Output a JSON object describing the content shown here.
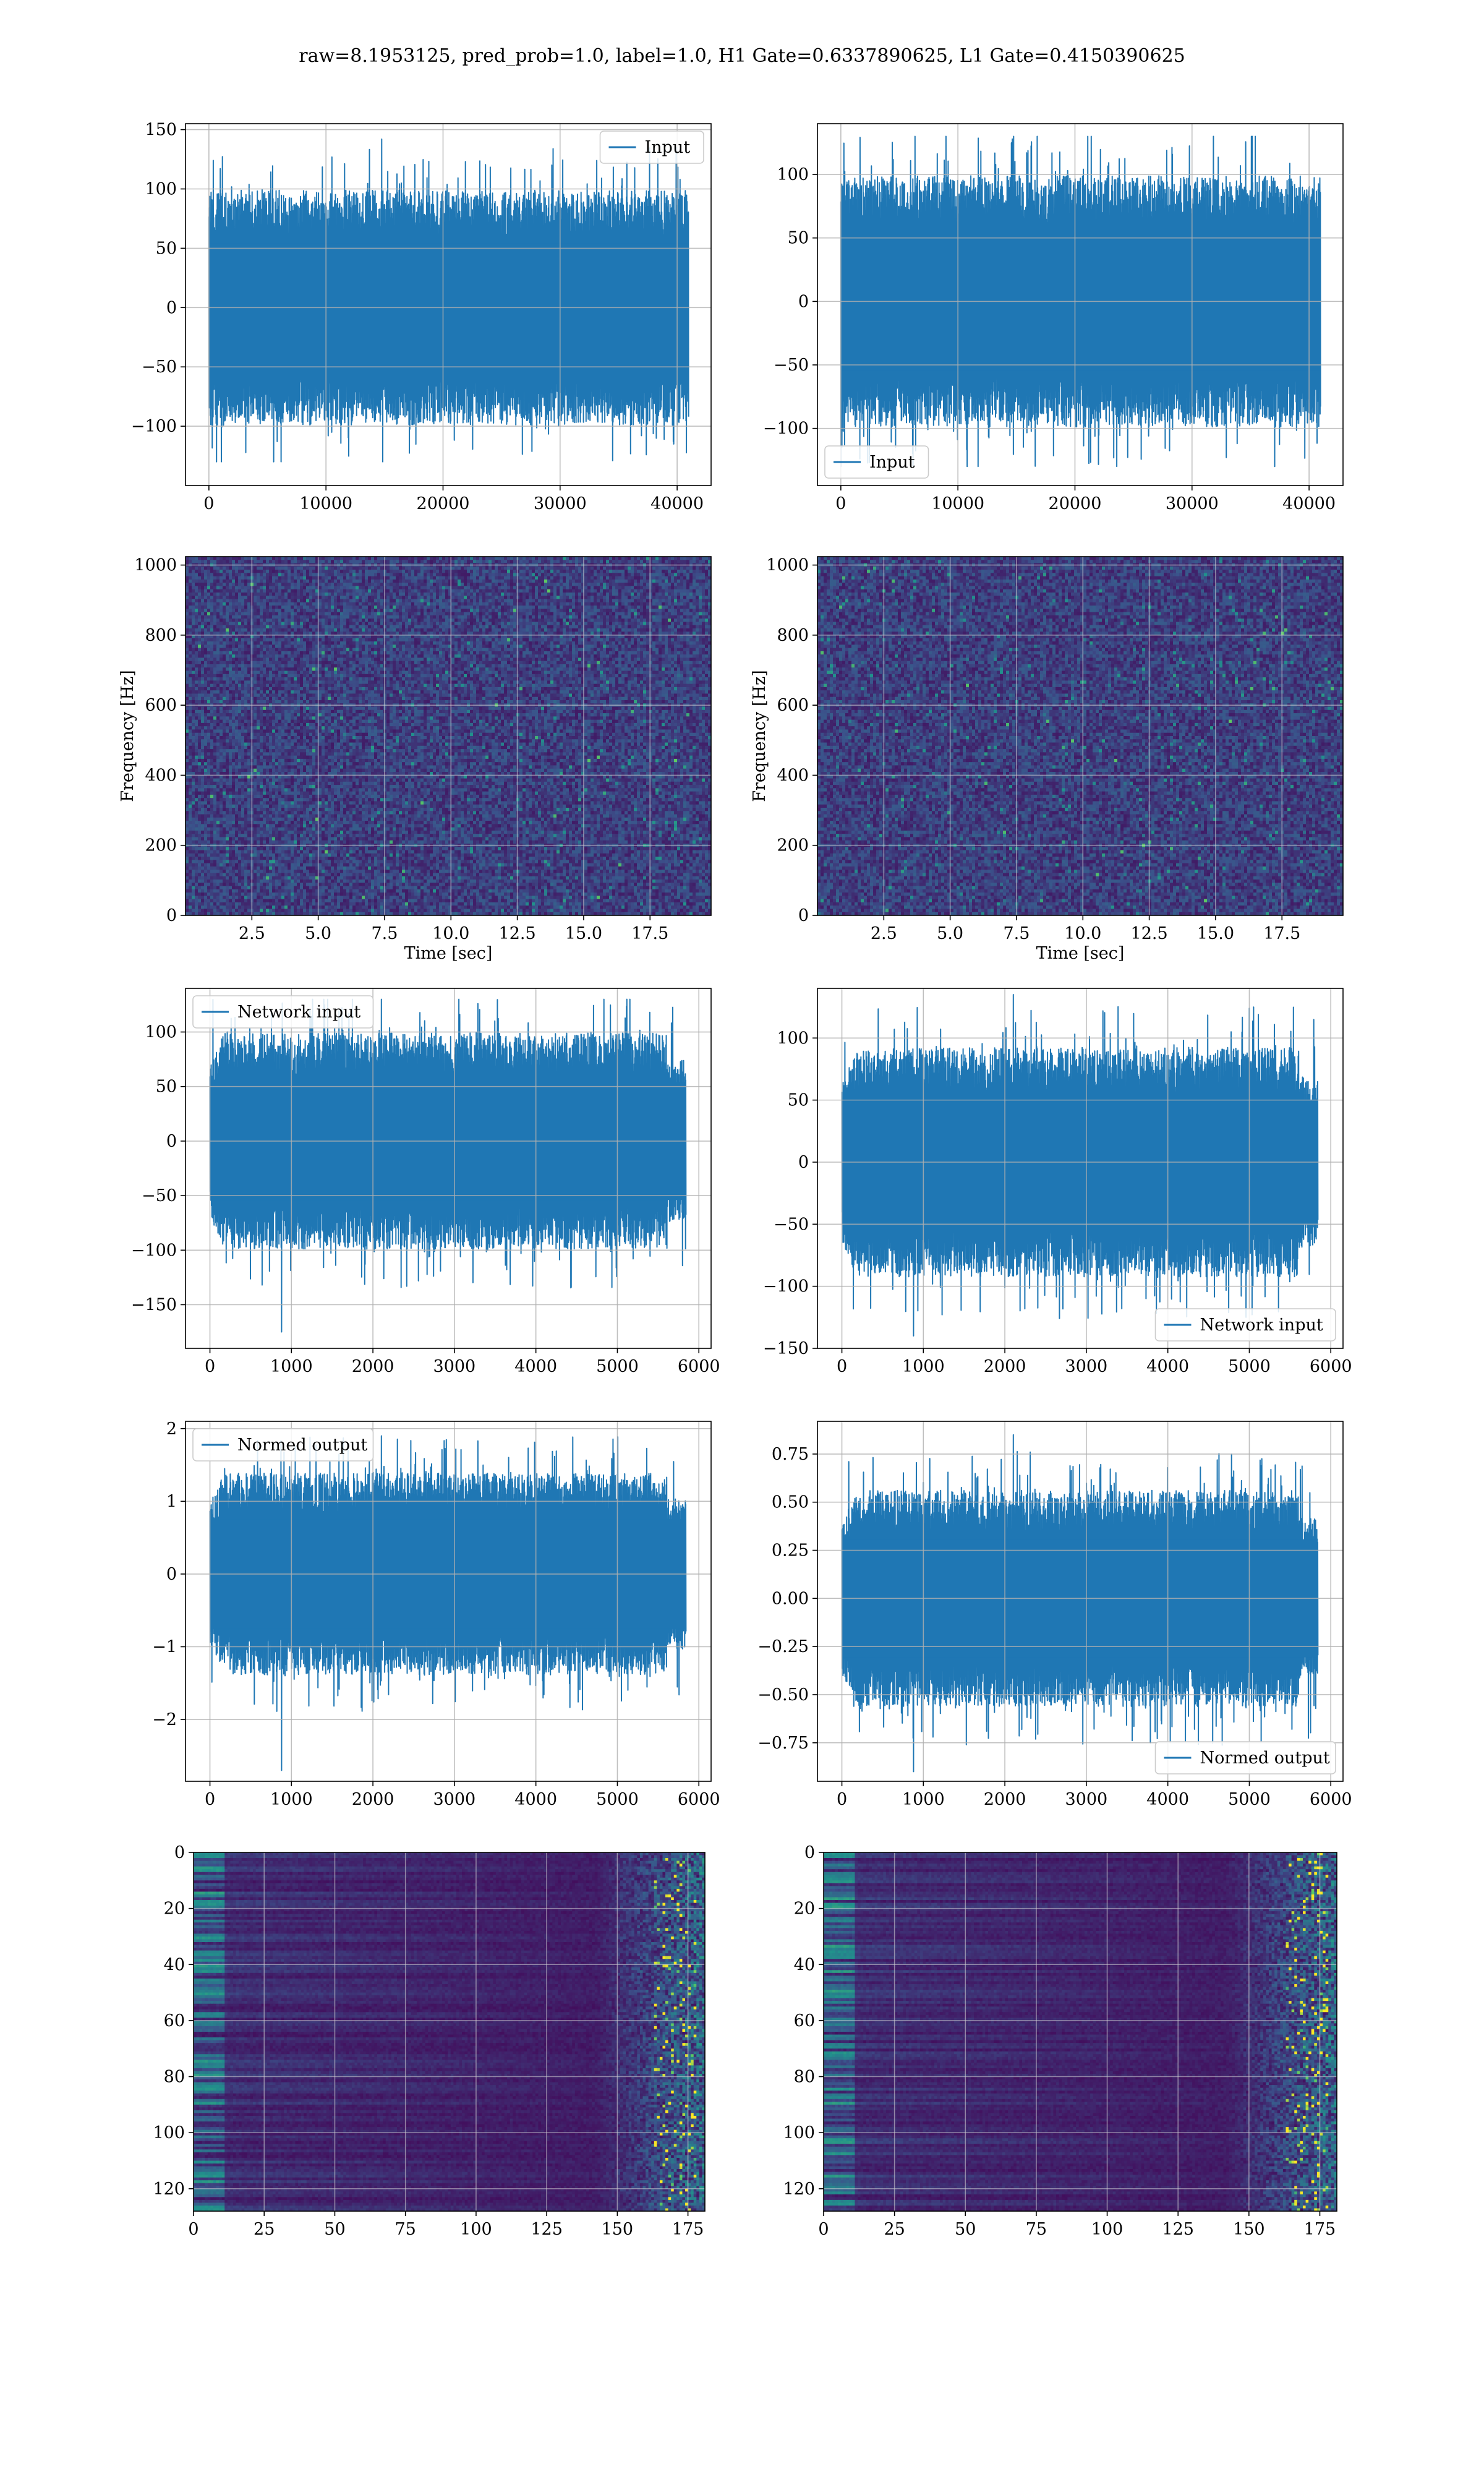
{
  "figure": {
    "suptitle": "raw=8.1953125, pred_prob=1.0, label=1.0, H1 Gate=0.6337890625, L1 Gate=0.4150390625"
  },
  "colors": {
    "line": "#1f77b4",
    "grid": "#b0b0b0",
    "viridis_low": "#440154",
    "viridis_mid": "#21918c",
    "viridis_high": "#fde725"
  },
  "chart_data": [
    {
      "id": "h1-input",
      "type": "line",
      "series": [
        {
          "name": "Input",
          "n": 40960,
          "amplitude_std": 30,
          "min": -130,
          "max": 142
        }
      ],
      "xlim": [
        -2000,
        42900
      ],
      "ylim": [
        -150,
        155
      ],
      "xticks": [
        0,
        10000,
        20000,
        30000,
        40000
      ],
      "yticks": [
        -100,
        -50,
        0,
        50,
        100,
        150
      ],
      "legend": "top-right",
      "grid": true,
      "xlabel": "",
      "ylabel": ""
    },
    {
      "id": "l1-input",
      "type": "line",
      "series": [
        {
          "name": "Input",
          "n": 40960,
          "amplitude_std": 30,
          "min": -130,
          "max": 130
        }
      ],
      "xlim": [
        -2000,
        42900
      ],
      "ylim": [
        -145,
        140
      ],
      "xticks": [
        0,
        10000,
        20000,
        30000,
        40000
      ],
      "yticks": [
        -100,
        -50,
        0,
        50,
        100
      ],
      "legend": "bottom-left",
      "grid": true,
      "xlabel": "",
      "ylabel": ""
    },
    {
      "id": "h1-spectrogram",
      "type": "heatmap",
      "xlim": [
        0,
        19.8
      ],
      "ylim": [
        0,
        1024
      ],
      "xticks": [
        2.5,
        5.0,
        7.5,
        10.0,
        12.5,
        15.0,
        17.5
      ],
      "yticks": [
        0,
        200,
        400,
        600,
        800,
        1000
      ],
      "xlabel": "Time [sec]",
      "ylabel": "Frequency [Hz]",
      "grid": true
    },
    {
      "id": "l1-spectrogram",
      "type": "heatmap",
      "xlim": [
        0,
        19.8
      ],
      "ylim": [
        0,
        1024
      ],
      "xticks": [
        2.5,
        5.0,
        7.5,
        10.0,
        12.5,
        15.0,
        17.5
      ],
      "yticks": [
        0,
        200,
        400,
        600,
        800,
        1000
      ],
      "xlabel": "Time [sec]",
      "ylabel": "Frequency [Hz]",
      "grid": true
    },
    {
      "id": "h1-network-input",
      "type": "line",
      "series": [
        {
          "name": "Network input",
          "n": 5840,
          "amplitude_std": 30,
          "min": -175,
          "max": 130
        }
      ],
      "xlim": [
        -300,
        6150
      ],
      "ylim": [
        -190,
        140
      ],
      "xticks": [
        0,
        1000,
        2000,
        3000,
        4000,
        5000,
        6000
      ],
      "yticks": [
        -150,
        -100,
        -50,
        0,
        50,
        100
      ],
      "legend": "top-left",
      "grid": true,
      "xlabel": "",
      "ylabel": ""
    },
    {
      "id": "l1-network-input",
      "type": "line",
      "series": [
        {
          "name": "Network input",
          "n": 5840,
          "amplitude_std": 28,
          "min": -140,
          "max": 135
        }
      ],
      "xlim": [
        -300,
        6150
      ],
      "ylim": [
        -150,
        140
      ],
      "xticks": [
        0,
        1000,
        2000,
        3000,
        4000,
        5000,
        6000
      ],
      "yticks": [
        -150,
        -100,
        -50,
        0,
        50,
        100
      ],
      "legend": "bottom-right",
      "grid": true,
      "xlabel": "",
      "ylabel": ""
    },
    {
      "id": "h1-normed-output",
      "type": "line",
      "series": [
        {
          "name": "Normed output",
          "n": 5840,
          "amplitude_std": 0.42,
          "min": -2.7,
          "max": 1.9
        }
      ],
      "xlim": [
        -300,
        6150
      ],
      "ylim": [
        -2.85,
        2.1
      ],
      "xticks": [
        0,
        1000,
        2000,
        3000,
        4000,
        5000,
        6000
      ],
      "yticks": [
        -2,
        -1,
        0,
        1,
        2
      ],
      "legend": "top-left",
      "grid": true,
      "xlabel": "",
      "ylabel": ""
    },
    {
      "id": "l1-normed-output",
      "type": "line",
      "series": [
        {
          "name": "Normed output",
          "n": 5840,
          "amplitude_std": 0.17,
          "min": -0.9,
          "max": 0.85
        }
      ],
      "xlim": [
        -300,
        6150
      ],
      "ylim": [
        -0.95,
        0.92
      ],
      "xticks": [
        0,
        1000,
        2000,
        3000,
        4000,
        5000,
        6000
      ],
      "yticks": [
        -0.75,
        -0.5,
        -0.25,
        0.0,
        0.25,
        0.5,
        0.75
      ],
      "ytick_labels": [
        "−0.75",
        "−0.50",
        "−0.25",
        "0.00",
        "0.25",
        "0.50",
        "0.75"
      ],
      "legend": "bottom-right",
      "grid": true,
      "xlabel": "",
      "ylabel": ""
    },
    {
      "id": "h1-features",
      "type": "heatmap",
      "xlim": [
        0,
        181
      ],
      "ylim": [
        128,
        0
      ],
      "xticks": [
        0,
        25,
        50,
        75,
        100,
        125,
        150,
        175
      ],
      "yticks": [
        0,
        20,
        40,
        60,
        80,
        100,
        120
      ],
      "grid": true,
      "xlabel": "",
      "ylabel": ""
    },
    {
      "id": "l1-features",
      "type": "heatmap",
      "xlim": [
        0,
        181
      ],
      "ylim": [
        128,
        0
      ],
      "xticks": [
        0,
        25,
        50,
        75,
        100,
        125,
        150,
        175
      ],
      "yticks": [
        0,
        20,
        40,
        60,
        80,
        100,
        120
      ],
      "grid": true,
      "xlabel": "",
      "ylabel": ""
    }
  ]
}
